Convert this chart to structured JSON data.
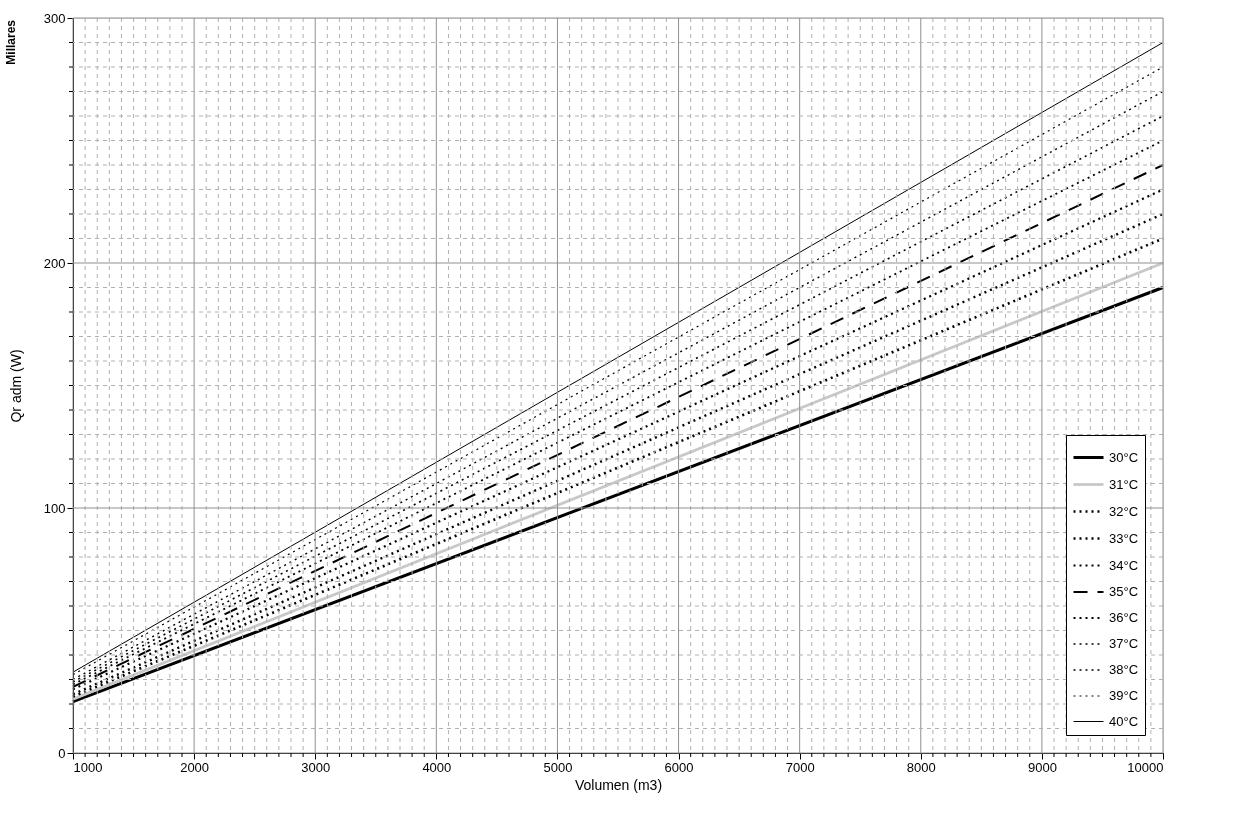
{
  "chart_data": {
    "type": "line",
    "xlabel": "Volumen (m3)",
    "ylabel": "Qr adm (W)",
    "annotations": [
      "Millares"
    ],
    "x": [
      1000,
      10000
    ],
    "xlim": [
      1000,
      10000
    ],
    "ylim": [
      0,
      300
    ],
    "xticks": [
      1000,
      {
        "value": 1100,
        "label": null
      },
      {
        "value": 1200,
        "label": null
      },
      {
        "value": 1300,
        "label": null
      },
      {
        "value": 1400,
        "label": null
      },
      {
        "value": 1500,
        "label": null
      },
      {
        "value": 1600,
        "label": null
      },
      {
        "value": 1700,
        "label": null
      },
      {
        "value": 1800,
        "label": null
      },
      {
        "value": 1900,
        "label": null
      },
      2000,
      {
        "value": 2100,
        "label": null
      },
      {
        "value": 2200,
        "label": null
      },
      {
        "value": 2300,
        "label": null
      },
      {
        "value": 2400,
        "label": null
      },
      {
        "value": 2500,
        "label": null
      },
      {
        "value": 2600,
        "label": null
      },
      {
        "value": 2700,
        "label": null
      },
      {
        "value": 2800,
        "label": null
      },
      {
        "value": 2900,
        "label": null
      },
      3000,
      {
        "value": 3100,
        "label": null
      },
      {
        "value": 3200,
        "label": null
      },
      {
        "value": 3300,
        "label": null
      },
      {
        "value": 3400,
        "label": null
      },
      {
        "value": 3500,
        "label": null
      },
      {
        "value": 3600,
        "label": null
      },
      {
        "value": 3700,
        "label": null
      },
      {
        "value": 3800,
        "label": null
      },
      {
        "value": 3900,
        "label": null
      },
      4000,
      {
        "value": 4100,
        "label": null
      },
      {
        "value": 4200,
        "label": null
      },
      {
        "value": 4300,
        "label": null
      },
      {
        "value": 4400,
        "label": null
      },
      {
        "value": 4500,
        "label": null
      },
      {
        "value": 4600,
        "label": null
      },
      {
        "value": 4700,
        "label": null
      },
      {
        "value": 4800,
        "label": null
      },
      {
        "value": 4900,
        "label": null
      },
      5000,
      {
        "value": 5100,
        "label": null
      },
      {
        "value": 5200,
        "label": null
      },
      {
        "value": 5300,
        "label": null
      },
      {
        "value": 5400,
        "label": null
      },
      {
        "value": 5500,
        "label": null
      },
      {
        "value": 5600,
        "label": null
      },
      {
        "value": 5700,
        "label": null
      },
      {
        "value": 5800,
        "label": null
      },
      {
        "value": 5900,
        "label": null
      },
      6000,
      {
        "value": 6100,
        "label": null
      },
      {
        "value": 6200,
        "label": null
      },
      {
        "value": 6300,
        "label": null
      },
      {
        "value": 6400,
        "label": null
      },
      {
        "value": 6500,
        "label": null
      },
      {
        "value": 6600,
        "label": null
      },
      {
        "value": 6700,
        "label": null
      },
      {
        "value": 6800,
        "label": null
      },
      {
        "value": 6900,
        "label": null
      },
      7000,
      {
        "value": 7100,
        "label": null
      },
      {
        "value": 7200,
        "label": null
      },
      {
        "value": 7300,
        "label": null
      },
      {
        "value": 7400,
        "label": null
      },
      {
        "value": 7500,
        "label": null
      },
      {
        "value": 7600,
        "label": null
      },
      {
        "value": 7700,
        "label": null
      },
      {
        "value": 7800,
        "label": null
      },
      {
        "value": 7900,
        "label": null
      },
      8000,
      {
        "value": 8100,
        "label": null
      },
      {
        "value": 8200,
        "label": null
      },
      {
        "value": 8300,
        "label": null
      },
      {
        "value": 8400,
        "label": null
      },
      {
        "value": 8500,
        "label": null
      },
      {
        "value": 8600,
        "label": null
      },
      {
        "value": 8700,
        "label": null
      },
      {
        "value": 8800,
        "label": null
      },
      {
        "value": 8900,
        "label": null
      },
      9000,
      {
        "value": 9100,
        "label": null
      },
      {
        "value": 9200,
        "label": null
      },
      {
        "value": 9300,
        "label": null
      },
      {
        "value": 9400,
        "label": null
      },
      {
        "value": 9500,
        "label": null
      },
      {
        "value": 9600,
        "label": null
      },
      {
        "value": 9700,
        "label": null
      },
      {
        "value": 9800,
        "label": null
      },
      {
        "value": 9900,
        "label": null
      },
      10000
    ],
    "yticks": [
      0,
      {
        "value": 10,
        "label": null
      },
      {
        "value": 20,
        "label": null
      },
      {
        "value": 30,
        "label": null
      },
      {
        "value": 40,
        "label": null
      },
      {
        "value": 50,
        "label": null
      },
      {
        "value": 60,
        "label": null
      },
      {
        "value": 70,
        "label": null
      },
      {
        "value": 80,
        "label": null
      },
      {
        "value": 90,
        "label": null
      },
      100,
      {
        "value": 110,
        "label": null
      },
      {
        "value": 120,
        "label": null
      },
      {
        "value": 130,
        "label": null
      },
      {
        "value": 140,
        "label": null
      },
      {
        "value": 150,
        "label": null
      },
      {
        "value": 160,
        "label": null
      },
      {
        "value": 170,
        "label": null
      },
      {
        "value": 180,
        "label": null
      },
      {
        "value": 190,
        "label": null
      },
      200,
      {
        "value": 210,
        "label": null
      },
      {
        "value": 220,
        "label": null
      },
      {
        "value": 230,
        "label": null
      },
      {
        "value": 240,
        "label": null
      },
      {
        "value": 250,
        "label": null
      },
      {
        "value": 260,
        "label": null
      },
      {
        "value": 270,
        "label": null
      },
      {
        "value": 280,
        "label": null
      },
      {
        "value": 290,
        "label": null
      },
      300
    ],
    "grid": true,
    "legend": "bottom right",
    "series": [
      {
        "name": "30°C",
        "color": "#000000",
        "line_style": "solid",
        "values": [
          21,
          190
        ]
      },
      {
        "name": "31°C",
        "color": "#c8c8c8",
        "line_style": "solid",
        "values": [
          22,
          200
        ]
      },
      {
        "name": "32°C",
        "color": "#000000",
        "line_style": "dotted",
        "values": [
          23,
          210
        ]
      },
      {
        "name": "33°C",
        "color": "#000000",
        "line_style": "dotted",
        "values": [
          24,
          220
        ]
      },
      {
        "name": "34°C",
        "color": "#000000",
        "line_style": "dotted",
        "values": [
          26,
          230
        ]
      },
      {
        "name": "35°C",
        "color": "#000000",
        "line_style": "dashed",
        "values": [
          27,
          240
        ]
      },
      {
        "name": "36°C",
        "color": "#000000",
        "line_style": "dotted",
        "values": [
          28,
          250
        ]
      },
      {
        "name": "37°C",
        "color": "#000000",
        "line_style": "dotted",
        "values": [
          29,
          260
        ]
      },
      {
        "name": "38°C",
        "color": "#000000",
        "line_style": "dotted",
        "values": [
          30,
          270
        ]
      },
      {
        "name": "39°C",
        "color": "#000000",
        "line_style": "dotted",
        "values": [
          32,
          280
        ]
      },
      {
        "name": "40°C",
        "color": "#000000",
        "line_style": "solid",
        "values": [
          33,
          290
        ]
      }
    ]
  }
}
